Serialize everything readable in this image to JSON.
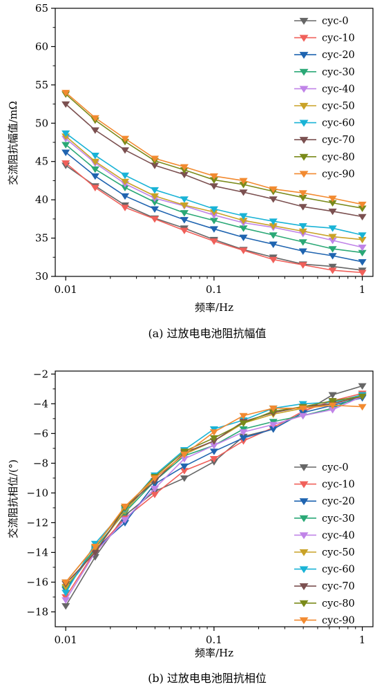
{
  "chart_data": [
    {
      "type": "line",
      "caption": "(a) 过放电电池阻抗幅值",
      "xlabel": "频率/Hz",
      "ylabel": "交流阻抗幅值/mΩ",
      "xscale": "log",
      "xlim": [
        0.0085,
        1.18
      ],
      "ylim": [
        30,
        65
      ],
      "x_ticks": [
        "0.01",
        "0.1",
        "1"
      ],
      "y_ticks": [
        "30",
        "35",
        "40",
        "45",
        "50",
        "55",
        "60",
        "65"
      ],
      "legend_position": "top-right",
      "x": [
        0.01,
        0.0158,
        0.0251,
        0.0398,
        0.0631,
        0.1,
        0.158,
        0.251,
        0.398,
        0.631,
        1.0
      ],
      "series": [
        {
          "name": "cyc-0",
          "color": "#666666",
          "values": [
            44.5,
            41.8,
            39.3,
            37.6,
            36.3,
            34.8,
            33.5,
            32.5,
            31.6,
            31.3,
            30.8
          ]
        },
        {
          "name": "cyc-10",
          "color": "#f0605a",
          "values": [
            44.8,
            41.6,
            39.0,
            37.5,
            36.0,
            34.6,
            33.4,
            32.2,
            31.5,
            30.8,
            30.5
          ]
        },
        {
          "name": "cyc-20",
          "color": "#1f64b0",
          "values": [
            46.2,
            43.1,
            40.5,
            38.8,
            37.4,
            36.2,
            35.1,
            34.2,
            33.3,
            32.7,
            31.9
          ]
        },
        {
          "name": "cyc-30",
          "color": "#2aa876",
          "values": [
            47.2,
            44.0,
            41.6,
            39.7,
            38.3,
            37.3,
            36.3,
            35.4,
            34.5,
            33.6,
            33.1
          ]
        },
        {
          "name": "cyc-40",
          "color": "#c084e8",
          "values": [
            48.0,
            44.8,
            42.1,
            40.2,
            39.2,
            38.0,
            37.0,
            36.4,
            35.6,
            34.7,
            33.8
          ]
        },
        {
          "name": "cyc-50",
          "color": "#c9a227",
          "values": [
            48.3,
            45.0,
            42.4,
            40.5,
            39.3,
            38.4,
            37.3,
            36.6,
            35.9,
            35.2,
            34.8
          ]
        },
        {
          "name": "cyc-60",
          "color": "#19b3d6",
          "values": [
            48.7,
            45.8,
            43.2,
            41.3,
            40.1,
            38.8,
            37.9,
            37.2,
            36.6,
            36.3,
            35.4
          ]
        },
        {
          "name": "cyc-70",
          "color": "#7b5050",
          "values": [
            52.5,
            49.1,
            46.5,
            44.5,
            43.3,
            41.8,
            41.0,
            40.1,
            39.1,
            38.5,
            37.8
          ]
        },
        {
          "name": "cyc-80",
          "color": "#7a8a1a",
          "values": [
            53.8,
            50.4,
            47.6,
            45.1,
            43.9,
            42.6,
            42.0,
            41.1,
            40.3,
            39.6,
            38.9
          ]
        },
        {
          "name": "cyc-90",
          "color": "#f28a30",
          "values": [
            54.0,
            50.7,
            48.0,
            45.4,
            44.3,
            43.1,
            42.5,
            41.4,
            40.9,
            40.2,
            39.4
          ]
        }
      ]
    },
    {
      "type": "line",
      "caption": "(b) 过放电电池阻抗相位",
      "xlabel": "频率/Hz",
      "ylabel": "交流阻抗相位/(°)",
      "xscale": "log",
      "xlim": [
        0.0085,
        1.18
      ],
      "ylim": [
        -19,
        -1.8
      ],
      "x_ticks": [
        "0.01",
        "0.1",
        "1"
      ],
      "y_ticks": [
        "−2",
        "−4",
        "−6",
        "−8",
        "−10",
        "−12",
        "−14",
        "−16",
        "−18"
      ],
      "y_tick_values": [
        -2,
        -4,
        -6,
        -8,
        -10,
        -12,
        -14,
        -16,
        -18
      ],
      "legend_position": "bottom-right",
      "x": [
        0.01,
        0.0158,
        0.0251,
        0.0398,
        0.0631,
        0.1,
        0.158,
        0.251,
        0.398,
        0.631,
        1.0
      ],
      "series": [
        {
          "name": "cyc-0",
          "color": "#666666",
          "values": [
            -17.6,
            -14.3,
            -11.5,
            -9.9,
            -9.0,
            -7.9,
            -6.2,
            -5.7,
            -4.6,
            -3.4,
            -2.8
          ]
        },
        {
          "name": "cyc-10",
          "color": "#f0605a",
          "values": [
            -17.0,
            -13.9,
            -11.7,
            -10.1,
            -8.5,
            -7.7,
            -6.5,
            -5.6,
            -4.5,
            -3.8,
            -3.3
          ]
        },
        {
          "name": "cyc-20",
          "color": "#1f64b0",
          "values": [
            -16.5,
            -13.8,
            -12.0,
            -9.4,
            -8.2,
            -7.2,
            -6.3,
            -5.7,
            -4.6,
            -4.1,
            -3.6
          ]
        },
        {
          "name": "cyc-30",
          "color": "#2aa876",
          "values": [
            -16.4,
            -13.7,
            -11.3,
            -9.2,
            -7.5,
            -6.8,
            -5.7,
            -5.2,
            -4.8,
            -4.3,
            -3.4
          ]
        },
        {
          "name": "cyc-40",
          "color": "#c084e8",
          "values": [
            -17.2,
            -14.0,
            -11.8,
            -9.7,
            -7.7,
            -6.8,
            -5.9,
            -5.4,
            -4.8,
            -4.4,
            -3.5
          ]
        },
        {
          "name": "cyc-50",
          "color": "#c9a227",
          "values": [
            -16.3,
            -13.9,
            -11.2,
            -9.0,
            -7.4,
            -6.5,
            -5.3,
            -4.7,
            -4.3,
            -4.0,
            -3.4
          ]
        },
        {
          "name": "cyc-60",
          "color": "#19b3d6",
          "values": [
            -16.7,
            -13.4,
            -11.1,
            -8.8,
            -7.1,
            -5.7,
            -5.1,
            -4.3,
            -4.0,
            -3.9,
            -3.4
          ]
        },
        {
          "name": "cyc-70",
          "color": "#7b5050",
          "values": [
            -16.1,
            -14.0,
            -11.0,
            -9.2,
            -7.3,
            -6.5,
            -5.2,
            -4.6,
            -4.2,
            -4.0,
            -3.5
          ]
        },
        {
          "name": "cyc-80",
          "color": "#7a8a1a",
          "values": [
            -16.0,
            -13.6,
            -11.0,
            -8.9,
            -7.2,
            -6.3,
            -5.3,
            -4.5,
            -4.2,
            -3.8,
            -3.5
          ]
        },
        {
          "name": "cyc-90",
          "color": "#f28a30",
          "values": [
            -16.0,
            -13.6,
            -10.9,
            -9.0,
            -7.4,
            -5.9,
            -4.8,
            -4.3,
            -4.3,
            -4.1,
            -4.2
          ]
        }
      ]
    }
  ]
}
